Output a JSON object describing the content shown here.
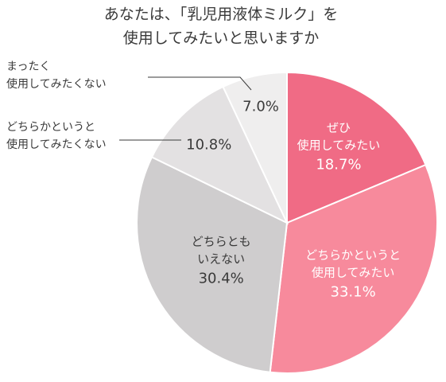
{
  "chart_data": {
    "type": "pie",
    "title": [
      "あなたは、「乳児用液体ミルク」を",
      "使用してみたいと思いますか"
    ],
    "start_angle_deg": 0,
    "direction": "clockwise",
    "slices": [
      {
        "label": [
          "ぜひ",
          "使用してみたい"
        ],
        "value": 18.7,
        "display": "18.7%",
        "color": "#f06b85",
        "label_color": "#ffffff",
        "label_position": "inside"
      },
      {
        "label": [
          "どちらかというと",
          "使用してみたい"
        ],
        "value": 33.1,
        "display": "33.1%",
        "color": "#f78a9c",
        "label_color": "#ffffff",
        "label_position": "inside"
      },
      {
        "label": [
          "どちらとも",
          "いえない"
        ],
        "value": 30.4,
        "display": "30.4%",
        "color": "#cfcdce",
        "label_color": "#3a3a3a",
        "label_position": "inside"
      },
      {
        "label": [
          "どちらかというと",
          "使用してみたくない"
        ],
        "value": 10.8,
        "display": "10.8%",
        "color": "#e3e1e2",
        "label_color": "#3a3a3a",
        "label_position": "outside"
      },
      {
        "label": [
          "まったく",
          "使用してみたくない"
        ],
        "value": 7.0,
        "display": "7.0%",
        "color": "#efeeee",
        "label_color": "#3a3a3a",
        "label_position": "outside"
      }
    ]
  }
}
